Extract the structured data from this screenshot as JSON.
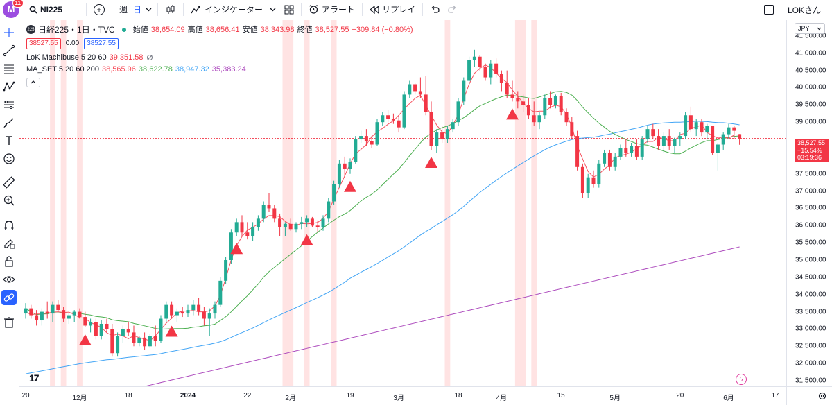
{
  "topbar": {
    "avatar_letter": "M",
    "avatar_badge": "11",
    "symbol": "NI225",
    "interval_week": "週",
    "interval_day": "日",
    "indicators_label": "インジケーター",
    "alert_label": "アラート",
    "replay_label": "リプレイ",
    "user_label": "LOKさん"
  },
  "legend": {
    "symbol_badge": "225",
    "title": "日経225・1日・TVC",
    "open_label": "始値",
    "open_value": "38,654.09",
    "high_label": "高値",
    "high_value": "38,656.41",
    "low_label": "安値",
    "low_value": "38,343.98",
    "close_label": "終値",
    "close_value": "38,527.55",
    "change": "−309.84 (−0.80%)",
    "bid": "38527.55",
    "spread": "0.00",
    "ask": "38527.55",
    "indicator1_name": "LoK Machibuse 5 20 60",
    "indicator1_value": "39,351.58",
    "indicator2_name": "MA_SET 5 20 60 200",
    "indicator2_values": [
      "38,565.96",
      "38,622.78",
      "38,947.32",
      "35,383.24"
    ],
    "collapse_icon": "chevron-up-icon"
  },
  "price_scale": {
    "currency": "JPY",
    "labels": [
      "41,500.00",
      "41,000.00",
      "40,500.00",
      "40,000.00",
      "39,500.00",
      "39,000.00",
      "37,500.00",
      "37,000.00",
      "36,500.00",
      "36,000.00",
      "35,500.00",
      "35,000.00",
      "34,500.00",
      "34,000.00",
      "33,500.00",
      "33,000.00",
      "32,500.00",
      "32,000.00",
      "31,500.00"
    ],
    "flag_price": "38,527.55",
    "flag_change": "+15.54%",
    "flag_timer": "03:19:36"
  },
  "time_scale": {
    "labels": [
      "20",
      "12月",
      "18",
      "2024",
      "22",
      "2月",
      "19",
      "3月",
      "18",
      "4月",
      "15",
      "5月",
      "20",
      "6月",
      "17"
    ],
    "timezone_icon": "settings-icon"
  },
  "colors": {
    "up": "#22ab94",
    "down": "#f23645",
    "ma5": "#f7525f",
    "ma20": "#4caf50",
    "ma60": "#42a5f5",
    "ma200": "#ab47bc",
    "signal": "#f23645",
    "zone": "#ffe3e3"
  },
  "chart_data": {
    "type": "candlestick",
    "title": "日経225・1日・TVC",
    "ylim": [
      31500,
      41800
    ],
    "candles": [
      [
        33450,
        33750,
        33300,
        33600
      ],
      [
        33600,
        33700,
        33300,
        33400
      ],
      [
        33400,
        33550,
        33100,
        33250
      ],
      [
        33250,
        33600,
        33100,
        33500
      ],
      [
        33500,
        33800,
        33300,
        33450
      ],
      [
        33450,
        33800,
        33200,
        33700
      ],
      [
        33700,
        33850,
        33500,
        33550
      ],
      [
        33550,
        33650,
        33200,
        33300
      ],
      [
        33300,
        33450,
        33150,
        33400
      ],
      [
        33400,
        33550,
        33200,
        33500
      ],
      [
        33500,
        33600,
        33300,
        33350
      ],
      [
        33350,
        33500,
        33050,
        33100
      ],
      [
        33100,
        33300,
        32900,
        33200
      ],
      [
        33200,
        33300,
        32700,
        32800
      ],
      [
        32800,
        33250,
        32700,
        33150
      ],
      [
        33150,
        33300,
        32900,
        33000
      ],
      [
        33000,
        33150,
        32200,
        32300
      ],
      [
        32300,
        32900,
        32200,
        32800
      ],
      [
        32800,
        33100,
        32600,
        33000
      ],
      [
        33000,
        33200,
        32800,
        32900
      ],
      [
        32900,
        33100,
        32500,
        32600
      ],
      [
        32600,
        32800,
        32500,
        32750
      ],
      [
        32750,
        32900,
        32400,
        32500
      ],
      [
        32500,
        32850,
        32450,
        32800
      ],
      [
        32800,
        33100,
        32500,
        32650
      ],
      [
        32650,
        33400,
        32600,
        33300
      ],
      [
        33300,
        33800,
        33200,
        33700
      ],
      [
        33700,
        33800,
        33300,
        33400
      ],
      [
        33400,
        33600,
        33200,
        33500
      ],
      [
        33500,
        33650,
        33350,
        33450
      ],
      [
        33450,
        33700,
        33350,
        33550
      ],
      [
        33550,
        33850,
        33400,
        33700
      ],
      [
        33700,
        33900,
        33400,
        33500
      ],
      [
        33500,
        33650,
        33100,
        33300
      ],
      [
        33300,
        33600,
        32800,
        33450
      ],
      [
        33450,
        33800,
        33300,
        33700
      ],
      [
        33700,
        34500,
        33650,
        34400
      ],
      [
        34400,
        35100,
        34300,
        35000
      ],
      [
        35000,
        35900,
        34900,
        35800
      ],
      [
        35800,
        36200,
        35700,
        36100
      ],
      [
        36100,
        36300,
        35700,
        35800
      ],
      [
        35800,
        36100,
        35600,
        35700
      ],
      [
        35700,
        36100,
        35550,
        35950
      ],
      [
        35950,
        36300,
        35850,
        36200
      ],
      [
        36200,
        36700,
        36100,
        36600
      ],
      [
        36600,
        36950,
        36400,
        36500
      ],
      [
        36500,
        36600,
        36100,
        36200
      ],
      [
        36200,
        36350,
        35700,
        35950
      ],
      [
        35950,
        36100,
        35700,
        36050
      ],
      [
        36050,
        36200,
        35850,
        35900
      ],
      [
        35900,
        36100,
        35800,
        36050
      ],
      [
        36050,
        36250,
        35900,
        36100
      ],
      [
        36100,
        36300,
        35950,
        36200
      ],
      [
        36200,
        36250,
        35950,
        36000
      ],
      [
        36000,
        36150,
        35800,
        35950
      ],
      [
        35950,
        36300,
        35850,
        36200
      ],
      [
        36200,
        36800,
        36100,
        36700
      ],
      [
        36700,
        37300,
        36600,
        37200
      ],
      [
        37200,
        37900,
        37100,
        37800
      ],
      [
        37800,
        38000,
        37400,
        37650
      ],
      [
        37650,
        37950,
        37500,
        37850
      ],
      [
        37850,
        38600,
        37800,
        38500
      ],
      [
        38500,
        38750,
        38400,
        38600
      ],
      [
        38600,
        38800,
        38300,
        38450
      ],
      [
        38450,
        38600,
        38250,
        38350
      ],
      [
        38350,
        39100,
        38300,
        39000
      ],
      [
        39000,
        39300,
        38900,
        39200
      ],
      [
        39200,
        39350,
        39000,
        39100
      ],
      [
        39100,
        39250,
        38950,
        39050
      ],
      [
        39050,
        39200,
        38700,
        38850
      ],
      [
        38850,
        39900,
        38800,
        39800
      ],
      [
        39800,
        40200,
        39700,
        40100
      ],
      [
        40100,
        40150,
        39800,
        39900
      ],
      [
        39900,
        40300,
        39700,
        39800
      ],
      [
        39800,
        40350,
        39200,
        39300
      ],
      [
        39300,
        39600,
        38200,
        38300
      ],
      [
        38300,
        38800,
        38100,
        38700
      ],
      [
        38700,
        38900,
        38400,
        38500
      ],
      [
        38500,
        38900,
        38400,
        38800
      ],
      [
        38800,
        39100,
        38700,
        39000
      ],
      [
        39000,
        39700,
        38900,
        39600
      ],
      [
        39600,
        40300,
        39500,
        40200
      ],
      [
        40200,
        40900,
        40100,
        40800
      ],
      [
        40800,
        41100,
        40600,
        40900
      ],
      [
        40900,
        40950,
        40500,
        40600
      ],
      [
        40600,
        40700,
        40200,
        40300
      ],
      [
        40300,
        40800,
        40100,
        40700
      ],
      [
        40700,
        40850,
        40300,
        40400
      ],
      [
        40400,
        40500,
        39900,
        40150
      ],
      [
        40150,
        40500,
        39700,
        39800
      ],
      [
        39800,
        40200,
        39600,
        39700
      ],
      [
        39700,
        39900,
        39400,
        39600
      ],
      [
        39600,
        39800,
        39300,
        39500
      ],
      [
        39500,
        39700,
        39100,
        39200
      ],
      [
        39200,
        39600,
        38900,
        39000
      ],
      [
        39000,
        39300,
        38800,
        39200
      ],
      [
        39200,
        39800,
        39100,
        39700
      ],
      [
        39700,
        39900,
        39400,
        39500
      ],
      [
        39500,
        39800,
        39400,
        39750
      ],
      [
        39750,
        39850,
        39200,
        39300
      ],
      [
        39300,
        39400,
        38900,
        39000
      ],
      [
        39000,
        39150,
        38500,
        38600
      ],
      [
        38600,
        38750,
        37600,
        37700
      ],
      [
        37700,
        37800,
        36800,
        36950
      ],
      [
        36950,
        37500,
        36800,
        37400
      ],
      [
        37400,
        37600,
        37100,
        37200
      ],
      [
        37200,
        37900,
        37100,
        37800
      ],
      [
        37800,
        38200,
        37700,
        38100
      ],
      [
        38100,
        38200,
        37600,
        37700
      ],
      [
        37700,
        38100,
        37600,
        38000
      ],
      [
        38000,
        38350,
        37900,
        38250
      ],
      [
        38250,
        38500,
        38000,
        38100
      ],
      [
        38100,
        38400,
        38000,
        38300
      ],
      [
        38300,
        38500,
        37900,
        38000
      ],
      [
        38000,
        38600,
        37900,
        38500
      ],
      [
        38500,
        38900,
        38400,
        38800
      ],
      [
        38800,
        38950,
        38500,
        38600
      ],
      [
        38600,
        38800,
        38200,
        38300
      ],
      [
        38300,
        38700,
        38100,
        38600
      ],
      [
        38600,
        38800,
        38200,
        38300
      ],
      [
        38300,
        38550,
        38100,
        38500
      ],
      [
        38500,
        38700,
        38300,
        38600
      ],
      [
        38600,
        39300,
        38500,
        39200
      ],
      [
        39200,
        39450,
        38700,
        38800
      ],
      [
        38800,
        39100,
        38600,
        39000
      ],
      [
        39000,
        39100,
        38600,
        38700
      ],
      [
        38700,
        38950,
        38500,
        38900
      ],
      [
        38900,
        38900,
        38050,
        38100
      ],
      [
        38100,
        38400,
        37600,
        38350
      ],
      [
        38350,
        38700,
        38200,
        38650
      ],
      [
        38650,
        38950,
        38500,
        38850
      ],
      [
        38850,
        38900,
        38500,
        38750
      ],
      [
        38654,
        38656,
        38344,
        38528
      ]
    ],
    "signal_bars": [
      11,
      27,
      39,
      52,
      60,
      75,
      90
    ],
    "zone_bars": [
      [
        5,
        5
      ],
      [
        7,
        7
      ],
      [
        10,
        10
      ],
      [
        48,
        49
      ],
      [
        52,
        52
      ],
      [
        57,
        57
      ],
      [
        78,
        78
      ],
      [
        91,
        92
      ],
      [
        94,
        94
      ]
    ],
    "ma60_start": 31700,
    "ma200_start": 31300
  }
}
